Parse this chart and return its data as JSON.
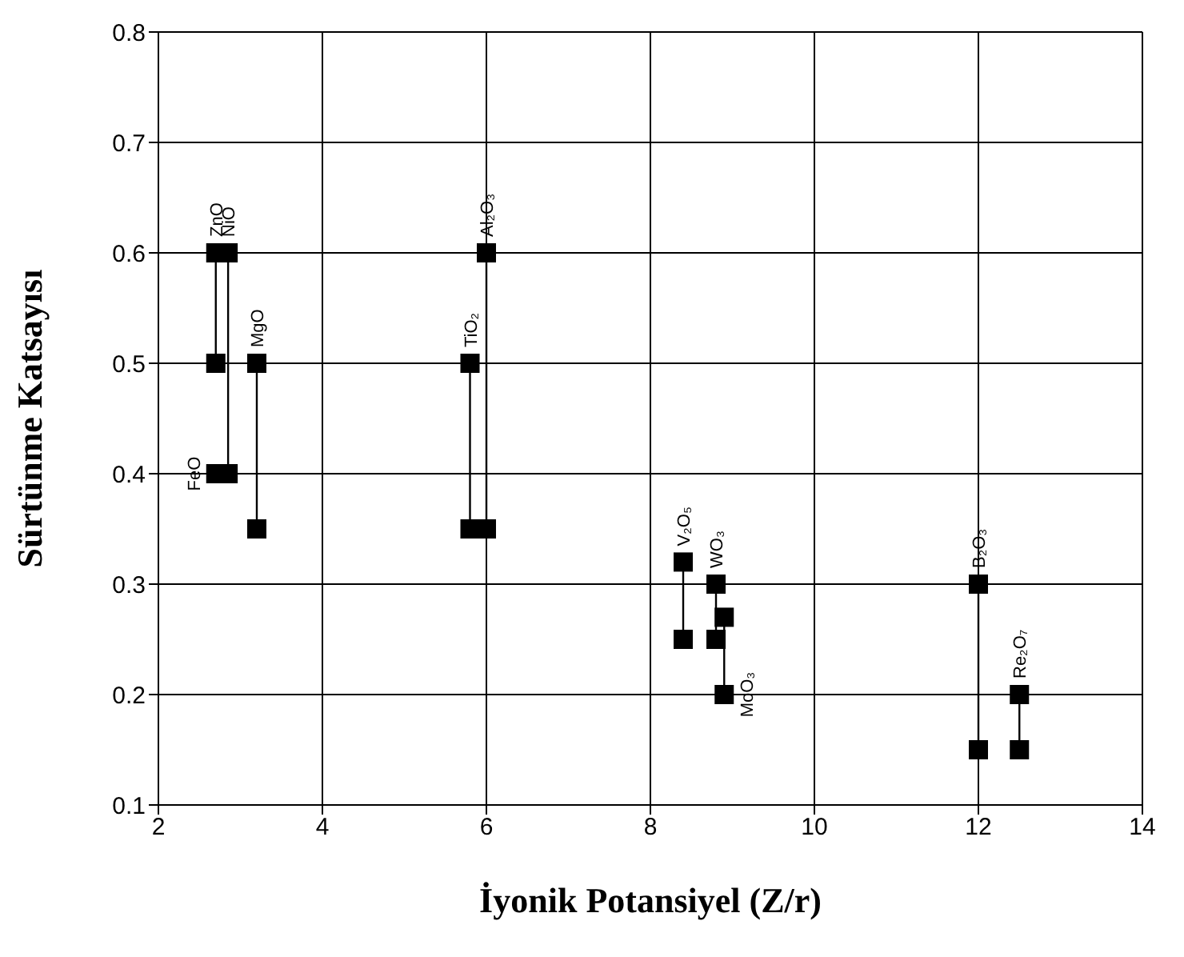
{
  "chart_data": {
    "type": "scatter",
    "xlabel": "İyonik Potansiyel (Z/r)",
    "ylabel": "Sürtünme Katsayısı",
    "xlim": [
      2,
      14
    ],
    "xticks": [
      2,
      4,
      6,
      8,
      10,
      12,
      14
    ],
    "ylim": [
      0.1,
      0.8
    ],
    "yticks": [
      0.1,
      0.2,
      0.3,
      0.4,
      0.5,
      0.6,
      0.7,
      0.8
    ],
    "grid": true,
    "marker": "square",
    "line_style": "solid",
    "series": [
      {
        "name": "ZnO",
        "color": "#000000",
        "x": [
          2.7,
          2.7
        ],
        "values": [
          0.6,
          0.5
        ]
      },
      {
        "name": "NiO",
        "color": "#000000",
        "x": [
          2.85,
          2.85
        ],
        "values": [
          0.6,
          0.4
        ]
      },
      {
        "name": "FeO",
        "color": "#000000",
        "x": [
          2.7
        ],
        "values": [
          0.4
        ]
      },
      {
        "name": "MgO",
        "color": "#000000",
        "x": [
          3.2,
          3.2
        ],
        "values": [
          0.5,
          0.35
        ]
      },
      {
        "name": "TiO₂",
        "color": "#000000",
        "x": [
          5.8,
          5.8
        ],
        "values": [
          0.5,
          0.35
        ]
      },
      {
        "name": "Al₂O₃",
        "color": "#000000",
        "x": [
          6.0,
          6.0
        ],
        "values": [
          0.6,
          0.35
        ]
      },
      {
        "name": "V₂O₅",
        "color": "#000000",
        "x": [
          8.4,
          8.4
        ],
        "values": [
          0.32,
          0.25
        ]
      },
      {
        "name": "WO₃",
        "color": "#000000",
        "x": [
          8.8,
          8.8
        ],
        "values": [
          0.3,
          0.25
        ]
      },
      {
        "name": "MoO₃",
        "color": "#000000",
        "x": [
          8.9,
          8.9
        ],
        "values": [
          0.2,
          0.27
        ]
      },
      {
        "name": "B₂O₃",
        "color": "#000000",
        "x": [
          12,
          12
        ],
        "values": [
          0.3,
          0.15
        ]
      },
      {
        "name": "Re₂O₇",
        "color": "#000000",
        "x": [
          12.5,
          12.5
        ],
        "values": [
          0.2,
          0.15
        ]
      }
    ]
  }
}
